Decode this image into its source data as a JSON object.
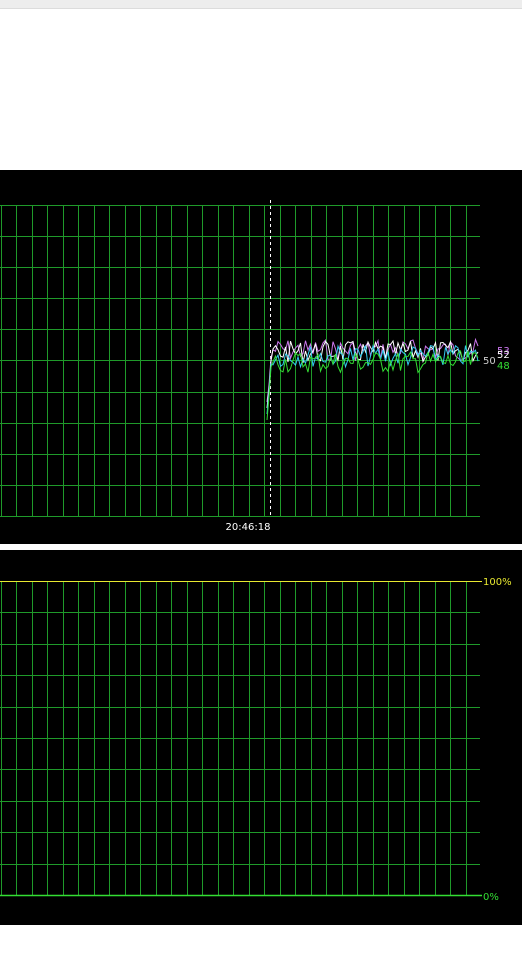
{
  "temp_graph": {
    "time_label": "20:46:18",
    "end_values": [
      "53",
      "52",
      "50",
      "48"
    ],
    "series_colors": [
      "#cc77ee",
      "#ffffff",
      "#33ccee",
      "#33dd33"
    ],
    "label_colors": [
      "#cc77ee",
      "#ffffff",
      "#cccccc",
      "#33dd33"
    ],
    "grid_color": "#1f9a2a",
    "cursor_color": "#ffffff"
  },
  "load_graph": {
    "max_label": "100%",
    "min_label": "0%",
    "grid_color": "#1f9a2a",
    "axis_color": "#e8e830",
    "bottom_color": "#33dd33"
  },
  "chart_data": [
    {
      "type": "line",
      "title": "",
      "x_label_shown": "20:46:18",
      "series": [
        {
          "color": "#cc77ee",
          "last": 53
        },
        {
          "color": "#ffffff",
          "last": 52
        },
        {
          "color": "#33ccee",
          "last": 50
        },
        {
          "color": "#33dd33",
          "last": 48
        }
      ],
      "grid": true
    },
    {
      "type": "line",
      "title": "",
      "ylim_labels": [
        "0%",
        "100%"
      ],
      "series": [],
      "grid": true
    }
  ]
}
